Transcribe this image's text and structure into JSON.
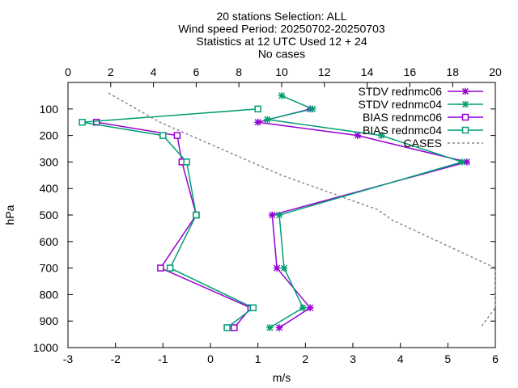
{
  "chart_data": {
    "type": "line",
    "title": [
      "20 stations Selection: ALL",
      "Wind speed  Period: 20250702-20250703",
      "Statistics at 12 UTC  Used 12 + 24",
      "No cases"
    ],
    "xlabel": "m/s",
    "ylabel": "hPa",
    "x_bottom_range": [
      -3,
      6
    ],
    "x_bottom_ticks": [
      "-3",
      "-2",
      "-1",
      "0",
      "1",
      "2",
      "3",
      "4",
      "5",
      "6"
    ],
    "x_top_range": [
      0,
      20
    ],
    "x_top_ticks": [
      "0",
      "2",
      "4",
      "6",
      "8",
      "10",
      "12",
      "14",
      "16",
      "18",
      "20"
    ],
    "y_range": [
      1000,
      0
    ],
    "y_ticks": [
      "100",
      "200",
      "300",
      "400",
      "500",
      "600",
      "700",
      "800",
      "900",
      "1000"
    ],
    "legend_position": "top-right",
    "series": [
      {
        "name": "STDV rednmc06",
        "color": "#9400d3",
        "marker": "star",
        "axis": "bottom",
        "points": [
          [
            2.1,
            100
          ],
          [
            1.0,
            150
          ],
          [
            3.1,
            200
          ],
          [
            5.4,
            300
          ],
          [
            1.3,
            500
          ],
          [
            1.4,
            700
          ],
          [
            2.1,
            850
          ],
          [
            1.45,
            925
          ]
        ]
      },
      {
        "name": "STDV rednmc04",
        "color": "#009e73",
        "marker": "star",
        "axis": "bottom",
        "points": [
          [
            1.5,
            50
          ],
          [
            2.15,
            100
          ],
          [
            1.2,
            140
          ],
          [
            3.6,
            200
          ],
          [
            5.3,
            300
          ],
          [
            1.45,
            500
          ],
          [
            1.55,
            700
          ],
          [
            1.95,
            850
          ],
          [
            1.25,
            925
          ]
        ]
      },
      {
        "name": "BIAS rednmc06",
        "color": "#9400d3",
        "marker": "square",
        "axis": "bottom",
        "points": [
          [
            -2.4,
            150
          ],
          [
            -0.7,
            200
          ],
          [
            -0.6,
            300
          ],
          [
            -0.3,
            500
          ],
          [
            -1.05,
            700
          ],
          [
            0.85,
            850
          ],
          [
            0.5,
            925
          ]
        ]
      },
      {
        "name": "BIAS rednmc04",
        "color": "#009e73",
        "marker": "square",
        "axis": "bottom",
        "points": [
          [
            1.0,
            100
          ],
          [
            -2.7,
            150
          ],
          [
            -1.0,
            200
          ],
          [
            -0.5,
            300
          ],
          [
            -0.3,
            500
          ],
          [
            -0.85,
            700
          ],
          [
            0.9,
            850
          ],
          [
            0.35,
            925
          ]
        ]
      },
      {
        "name": "CASES",
        "color": "#888888",
        "marker": "none",
        "dashed": true,
        "axis": "top",
        "points": [
          [
            1.9,
            40
          ],
          [
            4.3,
            150
          ],
          [
            10,
            350
          ],
          [
            14.5,
            480
          ],
          [
            15.2,
            520
          ],
          [
            20,
            700
          ],
          [
            20,
            850
          ],
          [
            19.3,
            925
          ]
        ]
      }
    ]
  }
}
